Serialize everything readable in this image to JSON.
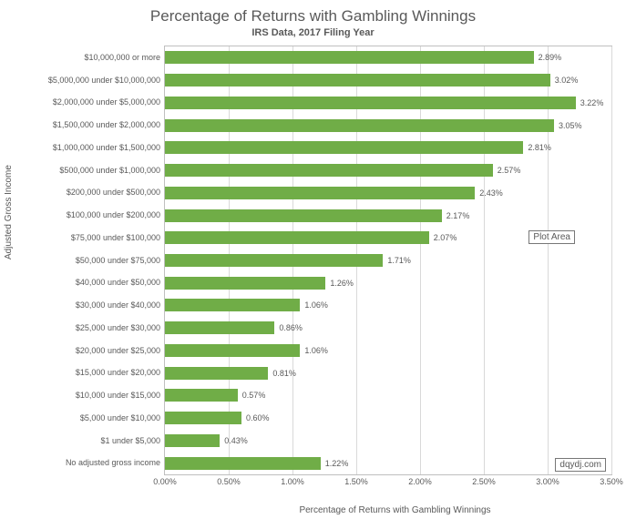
{
  "chart": {
    "type": "bar-horizontal",
    "title": "Percentage of Returns with Gambling Winnings",
    "subtitle": "IRS Data, 2017 Filing Year",
    "y_axis_title": "Adjusted Gross Income",
    "x_axis_title": "Percentage of Returns with Gambling Winnings",
    "title_fontsize": 17,
    "subtitle_fontsize": 11,
    "axis_title_fontsize": 10,
    "tick_fontsize": 9,
    "bar_color": "#70ad47",
    "background_color": "#ffffff",
    "grid_color": "#d9d9d9",
    "border_color": "#bfbfbf",
    "text_color": "#595959",
    "xlim": [
      0,
      3.5
    ],
    "xtick_step": 0.5,
    "xtick_labels": [
      "0.00%",
      "0.50%",
      "1.00%",
      "1.50%",
      "2.00%",
      "2.50%",
      "3.00%",
      "3.50%"
    ],
    "bar_height_ratio": 0.57,
    "categories": [
      "$10,000,000 or more",
      "$5,000,000 under $10,000,000",
      "$2,000,000 under $5,000,000",
      "$1,500,000 under $2,000,000",
      "$1,000,000 under $1,500,000",
      "$500,000 under $1,000,000",
      "$200,000 under $500,000",
      "$100,000 under $200,000",
      "$75,000 under $100,000",
      "$50,000 under $75,000",
      "$40,000 under $50,000",
      "$30,000 under $40,000",
      "$25,000 under $30,000",
      "$20,000 under $25,000",
      "$15,000 under $20,000",
      "$10,000 under $15,000",
      "$5,000 under $10,000",
      "$1 under $5,000",
      "No adjusted gross income"
    ],
    "values": [
      2.89,
      3.02,
      3.22,
      3.05,
      2.81,
      2.57,
      2.43,
      2.17,
      2.07,
      1.71,
      1.26,
      1.06,
      0.86,
      1.06,
      0.81,
      0.57,
      0.6,
      0.43,
      1.22
    ],
    "value_labels": [
      "2.89%",
      "3.02%",
      "3.22%",
      "3.05%",
      "2.81%",
      "2.57%",
      "2.43%",
      "2.17%",
      "2.07%",
      "1.71%",
      "1.26%",
      "1.06%",
      "0.86%",
      "1.06%",
      "0.81%",
      "0.57%",
      "0.60%",
      "0.43%",
      "1.22%"
    ],
    "watermark": "dqydj.com",
    "plot_area_badge": "Plot Area"
  }
}
